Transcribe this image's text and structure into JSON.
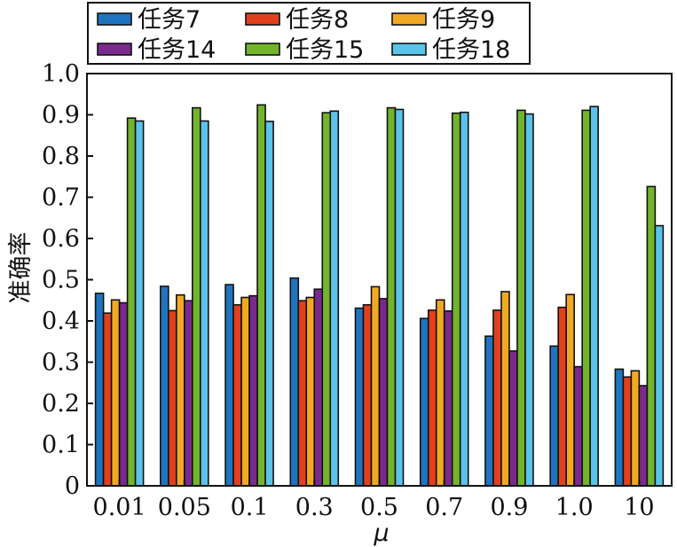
{
  "chart_data": {
    "type": "bar",
    "title": "",
    "xlabel": "μ",
    "ylabel": "准确率",
    "categories": [
      "0.01",
      "0.05",
      "0.1",
      "0.3",
      "0.5",
      "0.7",
      "0.9",
      "1.0",
      "10"
    ],
    "ylim": [
      0,
      1.0
    ],
    "yticks": [
      "0",
      "0.1",
      "0.2",
      "0.3",
      "0.4",
      "0.5",
      "0.6",
      "0.7",
      "0.8",
      "0.9",
      "1.0"
    ],
    "grid": false,
    "legend_position": "top",
    "series": [
      {
        "name": "任务7",
        "color": "#1f74bf",
        "values": [
          0.467,
          0.484,
          0.488,
          0.504,
          0.431,
          0.406,
          0.363,
          0.339,
          0.283
        ]
      },
      {
        "name": "任务8",
        "color": "#e2401c",
        "values": [
          0.419,
          0.425,
          0.439,
          0.449,
          0.439,
          0.426,
          0.426,
          0.433,
          0.264
        ]
      },
      {
        "name": "任务9",
        "color": "#f1a924",
        "values": [
          0.451,
          0.463,
          0.457,
          0.457,
          0.483,
          0.451,
          0.471,
          0.464,
          0.279
        ]
      },
      {
        "name": "任务14",
        "color": "#7a2a8c",
        "values": [
          0.444,
          0.449,
          0.461,
          0.477,
          0.454,
          0.424,
          0.327,
          0.289,
          0.243
        ]
      },
      {
        "name": "任务15",
        "color": "#72b52c",
        "values": [
          0.892,
          0.917,
          0.924,
          0.905,
          0.917,
          0.904,
          0.911,
          0.911,
          0.726
        ]
      },
      {
        "name": "任务18",
        "color": "#5bc3ea",
        "values": [
          0.885,
          0.885,
          0.884,
          0.909,
          0.913,
          0.906,
          0.902,
          0.92,
          0.631
        ]
      }
    ]
  }
}
